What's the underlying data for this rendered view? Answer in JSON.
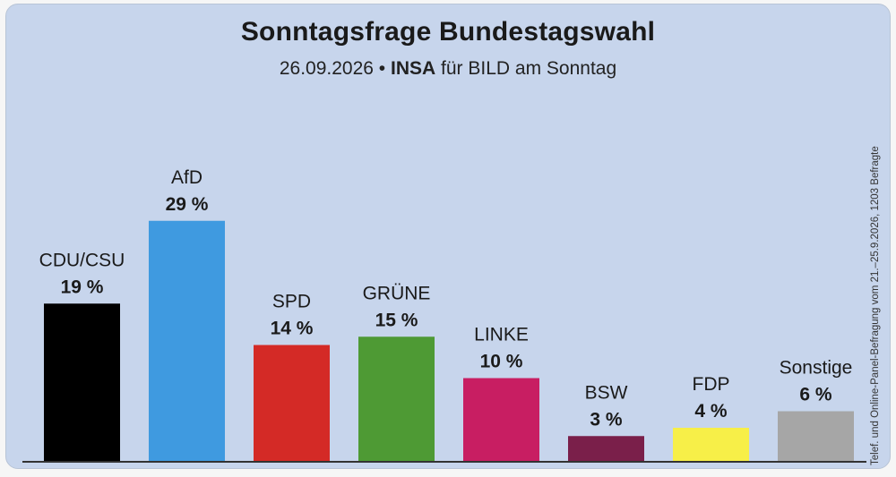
{
  "header": {
    "title": "Sonntagsfrage Bundestagswahl",
    "subtitle_date": "26.09.2026",
    "subtitle_sep": "•",
    "subtitle_institute": "INSA",
    "subtitle_rest": "für BILD am Sonntag"
  },
  "side_note": "Telef. und Online-Panel-Befragung vom 21.–25.9.2026, 1203 Befragte",
  "chart_data": {
    "type": "bar",
    "title": "Sonntagsfrage Bundestagswahl",
    "subtitle": "26.09.2026 • INSA für BILD am Sonntag",
    "categories": [
      "CDU/CSU",
      "AfD",
      "SPD",
      "GRÜNE",
      "LINKE",
      "BSW",
      "FDP",
      "Sonstige"
    ],
    "values": [
      19,
      29,
      14,
      15,
      10,
      3,
      4,
      6
    ],
    "value_labels": [
      "19 %",
      "29 %",
      "14 %",
      "15 %",
      "10 %",
      "3 %",
      "4 %",
      "6 %"
    ],
    "colors": [
      "#000000",
      "#3f9ae0",
      "#d42a26",
      "#4e9a34",
      "#c81e62",
      "#7a1f4a",
      "#f7ef48",
      "#a6a6a6"
    ],
    "xlabel": "",
    "ylabel": "",
    "ylim": [
      0,
      30
    ],
    "grid": false,
    "legend": "none"
  }
}
